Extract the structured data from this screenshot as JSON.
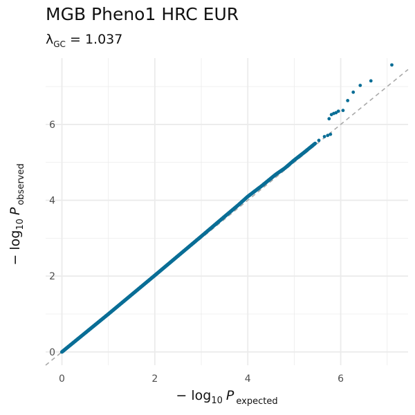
{
  "chart_data": {
    "type": "scatter",
    "title": "MGB Pheno1 HRC EUR",
    "subtitle": {
      "lambda_symbol": "λ",
      "lambda_subscript": "GC",
      "equals": " = ",
      "value": "1.037"
    },
    "xlabel": {
      "prefix": "− log",
      "base": "10",
      "var": "P",
      "subscript": "expected"
    },
    "ylabel": {
      "prefix": "− log",
      "base": "10",
      "var": "P",
      "subscript": "observed"
    },
    "xlim": [
      -0.35,
      7.45
    ],
    "ylim": [
      -0.35,
      7.75
    ],
    "x_ticks": [
      0,
      2,
      4,
      6
    ],
    "y_ticks": [
      0,
      2,
      4,
      6
    ],
    "grid": true,
    "reference_line": "y = x",
    "point_color": "#0a6e96",
    "reference_color": "#a9a9a9",
    "grid_color": "#ebebeb",
    "curve": [
      [
        0,
        0
      ],
      [
        1,
        1.0
      ],
      [
        2,
        2.02
      ],
      [
        3,
        3.05
      ],
      [
        3.5,
        3.57
      ],
      [
        3.8,
        3.88
      ],
      [
        4.0,
        4.1
      ],
      [
        4.3,
        4.38
      ],
      [
        4.6,
        4.68
      ],
      [
        4.8,
        4.85
      ],
      [
        5.0,
        5.06
      ],
      [
        5.2,
        5.25
      ],
      [
        5.3,
        5.35
      ],
      [
        5.45,
        5.5
      ]
    ],
    "points": [
      [
        5.53,
        5.58
      ],
      [
        5.65,
        5.68
      ],
      [
        5.72,
        5.71
      ],
      [
        5.78,
        5.74
      ],
      [
        5.75,
        6.15
      ],
      [
        5.8,
        6.26
      ],
      [
        5.85,
        6.29
      ],
      [
        5.9,
        6.31
      ],
      [
        5.95,
        6.35
      ],
      [
        6.05,
        6.37
      ],
      [
        6.15,
        6.63
      ],
      [
        6.27,
        6.85
      ],
      [
        6.42,
        7.03
      ],
      [
        6.65,
        7.15
      ],
      [
        7.1,
        7.57
      ]
    ]
  }
}
